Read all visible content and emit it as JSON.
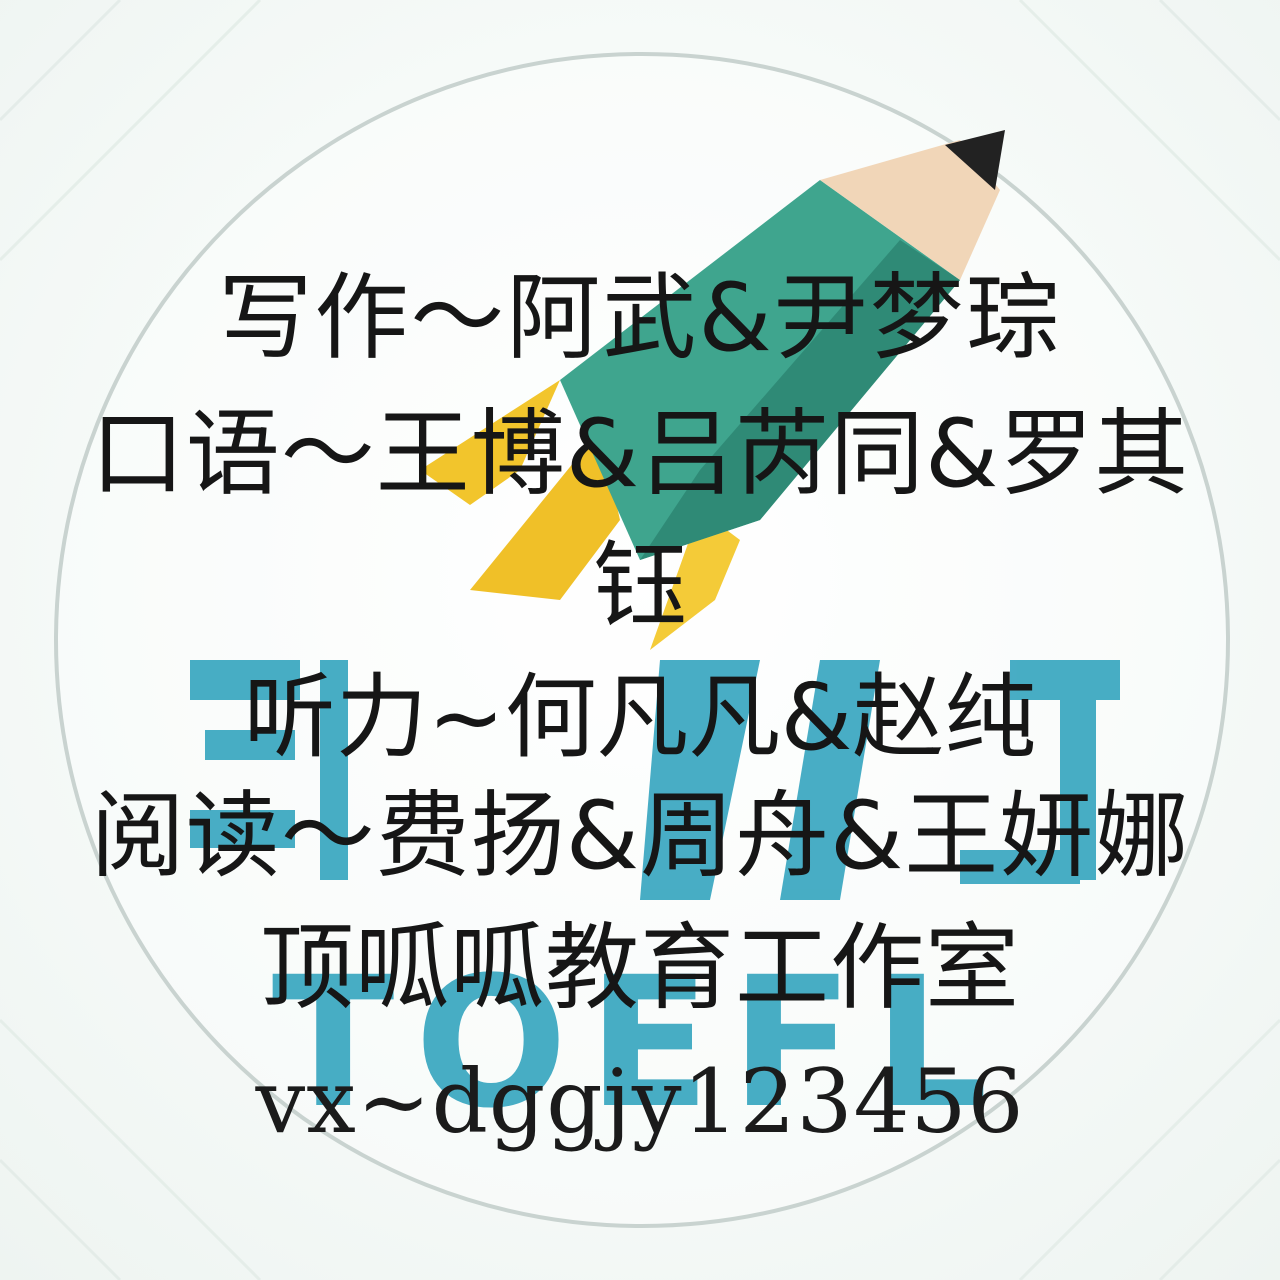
{
  "poster": {
    "writing": "写作～阿武&尹梦琮",
    "speaking": "口语～王博&吕芮同&罗其",
    "speaking_cont": "钰",
    "listening": "听力~何凡凡&赵纯",
    "reading": "阅读～费扬&周舟&王妍娜",
    "studio": "顶呱呱教育工作室",
    "contact": "vx~dggjy123456"
  },
  "logo": {
    "icon": "rocket-pencil-icon",
    "wordmark_text": "TOEFL",
    "colors": {
      "teal": "#3fa58e",
      "teal_dark": "#2f8a76",
      "wordmark_blue": "#3ea9c2",
      "flame": "#f2c52c",
      "pencil_wood": "#f1d6b8",
      "ring": "#c9d3d0"
    }
  }
}
